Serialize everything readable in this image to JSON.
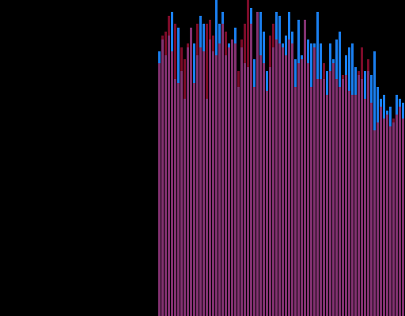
{
  "chart_data": {
    "type": "bar",
    "background": "#000000",
    "ylim": [
      0,
      400
    ],
    "series": [
      {
        "color": "#1a7ff0",
        "values": [
          335,
          350,
          330,
          355,
          385,
          300,
          365,
          310,
          275,
          340,
          365,
          345,
          330,
          380,
          370,
          275,
          350,
          335,
          400,
          370,
          385,
          330,
          345,
          350,
          365,
          290,
          340,
          320,
          315,
          390,
          325,
          385,
          385,
          360,
          310,
          315,
          340,
          385,
          380,
          345,
          355,
          385,
          360,
          325,
          375,
          330,
          375,
          350,
          345,
          345,
          385,
          345,
          300,
          310,
          345,
          325,
          350,
          360,
          300,
          330,
          340,
          345,
          315,
          305,
          300,
          310,
          310,
          305,
          335,
          290,
          275,
          280,
          260,
          265,
          245,
          280,
          275,
          270
        ]
      },
      {
        "color": "#b0103a",
        "values": [
          320,
          355,
          360,
          380,
          335,
          370,
          295,
          340,
          325,
          345,
          365,
          295,
          370,
          340,
          335,
          370,
          375,
          355,
          330,
          345,
          370,
          360,
          340,
          350,
          345,
          310,
          350,
          370,
          400,
          370,
          290,
          385,
          330,
          320,
          285,
          355,
          370,
          350,
          345,
          340,
          330,
          350,
          345,
          290,
          320,
          325,
          375,
          320,
          290,
          340,
          300,
          300,
          320,
          280,
          310,
          320,
          300,
          290,
          305,
          305,
          285,
          280,
          280,
          310,
          340,
          275,
          325,
          270,
          235,
          245,
          265,
          250,
          255,
          240,
          250,
          255,
          265,
          250
        ]
      }
    ]
  }
}
